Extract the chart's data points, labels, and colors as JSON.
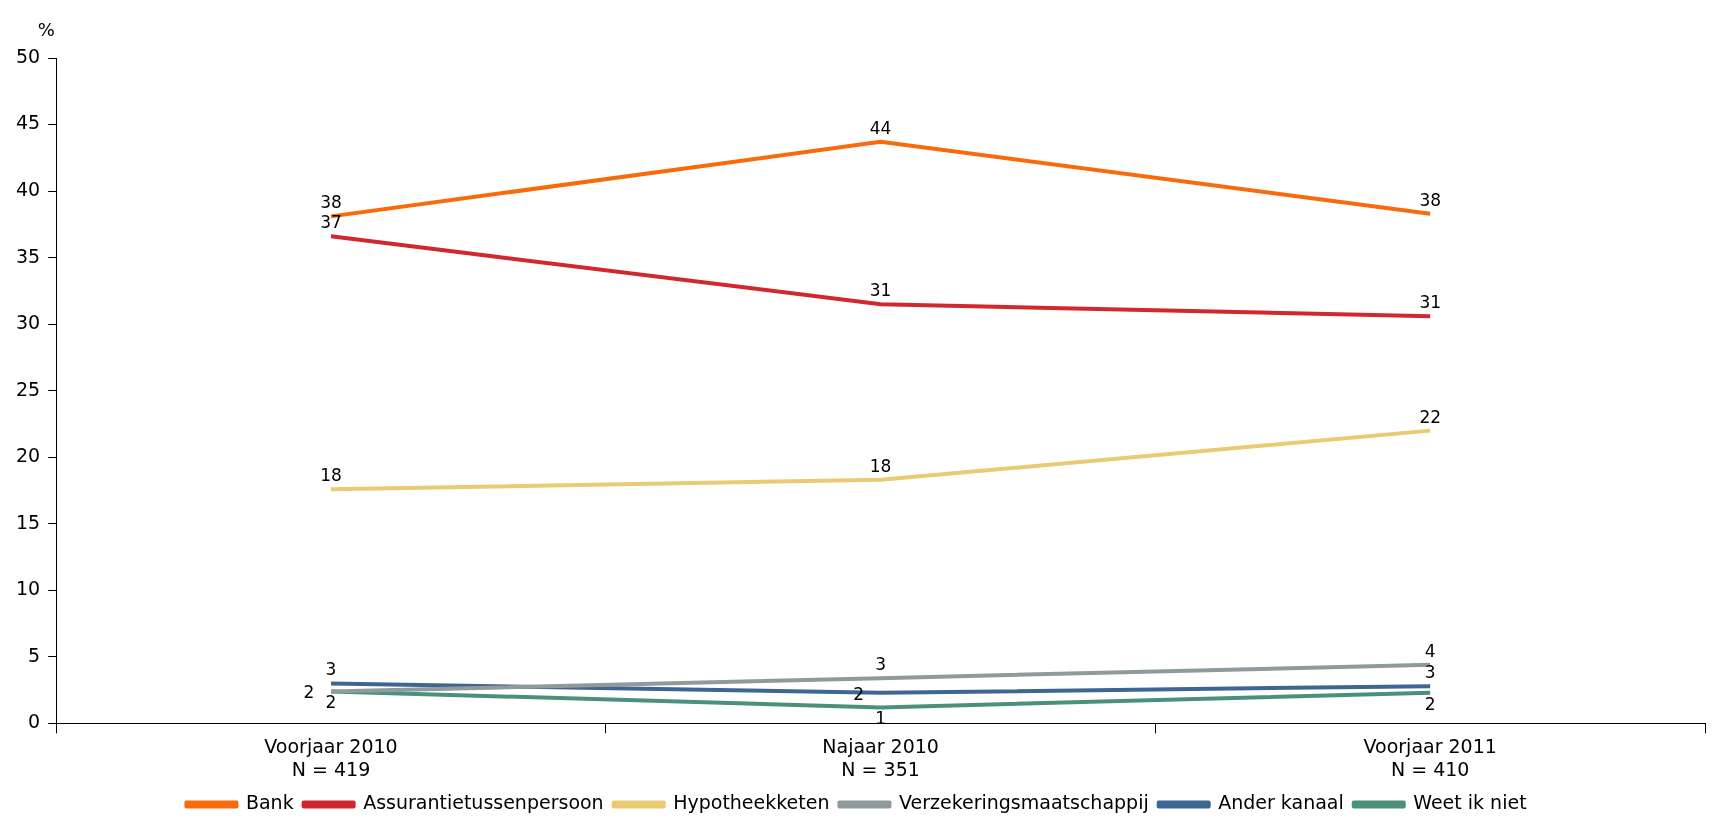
{
  "chart_data": {
    "type": "line",
    "ylabel": "%",
    "categories": [
      "Voorjaar 2010\nN = 419",
      "Najaar 2010\nN = 351",
      "Voorjaar 2011\nN = 410"
    ],
    "ylim": [
      0,
      50
    ],
    "yticks": [
      0,
      5,
      10,
      15,
      20,
      25,
      30,
      35,
      40,
      45,
      50
    ],
    "grid": false,
    "legend": "bottom",
    "marker": "none",
    "series": [
      {
        "name": "Bank",
        "color": "#f96b0a",
        "values": [
          38.1,
          43.7,
          38.3
        ],
        "value_labels": [
          "38",
          "44",
          "38"
        ]
      },
      {
        "name": "Assurantietussenpersoon",
        "color": "#d0282e",
        "values": [
          36.6,
          31.5,
          30.6
        ],
        "value_labels": [
          "37",
          "31",
          "31"
        ]
      },
      {
        "name": "Hypotheekketen",
        "color": "#e8cb73",
        "values": [
          17.6,
          18.3,
          22.0
        ],
        "value_labels": [
          "18",
          "18",
          "22"
        ]
      },
      {
        "name": "Verzekeringsmaatschappij",
        "color": "#8e9a9c",
        "values": [
          2.4,
          3.4,
          4.4
        ],
        "value_labels": [
          "2",
          "3",
          "4"
        ]
      },
      {
        "name": "Ander kanaal",
        "color": "#3d6693",
        "values": [
          3.0,
          2.3,
          2.8
        ],
        "value_labels": [
          "3",
          "2",
          "3"
        ]
      },
      {
        "name": "Weet ik niet",
        "color": "#4b907a",
        "values": [
          2.4,
          1.2,
          2.3
        ],
        "value_labels": [
          "2",
          "1",
          "2"
        ]
      }
    ]
  }
}
